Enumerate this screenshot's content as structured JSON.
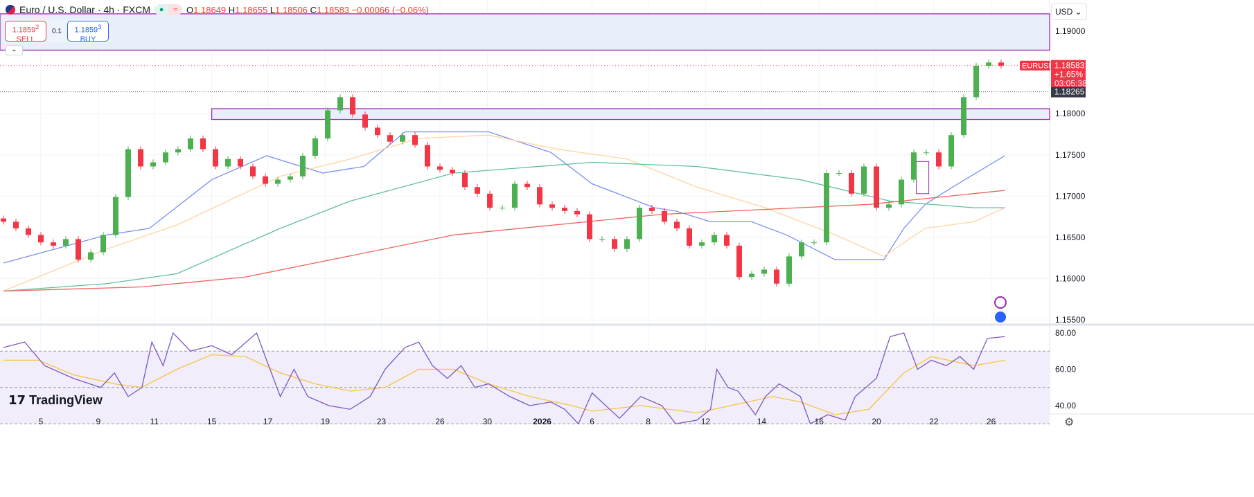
{
  "header": {
    "symbol": "Euro / U.S. Dollar · 4h · FXCM",
    "open_label": "O",
    "open": "1.18649",
    "high_label": "H",
    "high": "1.18655",
    "low_label": "L",
    "low": "1.18506",
    "close_label": "C",
    "close": "1.18583",
    "change": "−0.00066 (−0.06%)",
    "status_icon": "≈"
  },
  "trade": {
    "sell_price": "1.1859",
    "sell_sup": "2",
    "sell_label": "SELL",
    "qty": "0.1",
    "buy_price": "1.1859",
    "buy_sup": "3",
    "buy_label": "BUY"
  },
  "currency": "USD",
  "logo": "TradingView",
  "colors": {
    "up": "#4caf50",
    "down": "#f23645",
    "ma_fast": "#7b8ff0",
    "ma_mid": "#ffd3a0",
    "ma_slow": "#5fbf9a",
    "ma_long": "#f0625a",
    "rsi": "#7e57c2",
    "rsi_ma": "#f5c542",
    "zone": "#9c27b0"
  },
  "chart_data": [
    {
      "type": "candlestick",
      "title": "Euro / U.S. Dollar · 4h · FXCM",
      "ylim": [
        1.1535,
        1.1925
      ],
      "y_ticks": [
        "1.19000",
        "1.18000",
        "1.17500",
        "1.17000",
        "1.16500",
        "1.16000",
        "1.15500"
      ],
      "x_ticks": [
        {
          "label": "5",
          "bar": 3
        },
        {
          "label": "9",
          "bar": 7.6
        },
        {
          "label": "11",
          "bar": 12.1
        },
        {
          "label": "15",
          "bar": 16.7
        },
        {
          "label": "17",
          "bar": 21.2
        },
        {
          "label": "19",
          "bar": 25.8
        },
        {
          "label": "23",
          "bar": 30.3
        },
        {
          "label": "26",
          "bar": 35
        },
        {
          "label": "30",
          "bar": 38.8
        },
        {
          "label": "2026",
          "bar": 43.2
        },
        {
          "label": "6",
          "bar": 47.2
        },
        {
          "label": "8",
          "bar": 51.7
        },
        {
          "label": "12",
          "bar": 56.3
        },
        {
          "label": "14",
          "bar": 60.8
        },
        {
          "label": "16",
          "bar": 65.4
        },
        {
          "label": "20",
          "bar": 70
        },
        {
          "label": "22",
          "bar": 74.6
        },
        {
          "label": "26",
          "bar": 79.2
        }
      ],
      "closes": [
        1.1669,
        1.1661,
        1.1653,
        1.1644,
        1.164,
        1.1648,
        1.1623,
        1.1632,
        1.1653,
        1.1699,
        1.1757,
        1.1736,
        1.1741,
        1.1753,
        1.1757,
        1.177,
        1.1757,
        1.1736,
        1.1745,
        1.1736,
        1.1724,
        1.1715,
        1.172,
        1.1724,
        1.1749,
        1.177,
        1.1804,
        1.182,
        1.1799,
        1.1783,
        1.1774,
        1.1766,
        1.1774,
        1.1762,
        1.1736,
        1.1732,
        1.1728,
        1.1711,
        1.1703,
        1.1686,
        1.1686,
        1.1715,
        1.1711,
        1.169,
        1.1686,
        1.1682,
        1.1678,
        1.1648,
        1.1648,
        1.1636,
        1.1648,
        1.1686,
        1.1682,
        1.1669,
        1.1661,
        1.164,
        1.1644,
        1.1653,
        1.164,
        1.1602,
        1.1606,
        1.1611,
        1.1594,
        1.1627,
        1.1644,
        1.1644,
        1.1728,
        1.1728,
        1.1703,
        1.1736,
        1.1686,
        1.169,
        1.172,
        1.1753,
        1.1753,
        1.1736,
        1.1774,
        1.182,
        1.1858,
        1.1862,
        1.1858
      ],
      "moving_averages": [
        {
          "color_key": "ma_fast",
          "points": [
            [
              0,
              1.1619
            ],
            [
              8.3,
              1.1653
            ],
            [
              11.7,
              1.1661
            ],
            [
              16.7,
              1.172
            ],
            [
              21.1,
              1.1749
            ],
            [
              25.6,
              1.1728
            ],
            [
              28.9,
              1.1736
            ],
            [
              32.2,
              1.1778
            ],
            [
              38.9,
              1.1778
            ],
            [
              43.9,
              1.1753
            ],
            [
              47.2,
              1.1715
            ],
            [
              52.2,
              1.1686
            ],
            [
              53.9,
              1.1682
            ],
            [
              56.7,
              1.1669
            ],
            [
              60,
              1.1669
            ],
            [
              62.8,
              1.1653
            ],
            [
              66.7,
              1.1623
            ],
            [
              70.6,
              1.1623
            ],
            [
              72.2,
              1.1661
            ],
            [
              73.9,
              1.169
            ],
            [
              76.1,
              1.1711
            ],
            [
              80.3,
              1.1749
            ]
          ]
        },
        {
          "color_key": "ma_mid",
          "points": [
            [
              0,
              1.1585
            ],
            [
              8.3,
              1.1636
            ],
            [
              13.9,
              1.1665
            ],
            [
              22.2,
              1.1724
            ],
            [
              27.8,
              1.1745
            ],
            [
              33.3,
              1.177
            ],
            [
              38.9,
              1.1774
            ],
            [
              44.4,
              1.1757
            ],
            [
              50,
              1.1745
            ],
            [
              55.6,
              1.1711
            ],
            [
              61.1,
              1.1686
            ],
            [
              66.7,
              1.1653
            ],
            [
              70.6,
              1.1627
            ],
            [
              73.9,
              1.1661
            ],
            [
              77.8,
              1.1669
            ],
            [
              80.3,
              1.1686
            ]
          ]
        },
        {
          "color_key": "ma_slow",
          "points": [
            [
              0,
              1.1585
            ],
            [
              8.3,
              1.1594
            ],
            [
              13.9,
              1.1606
            ],
            [
              22.2,
              1.1661
            ],
            [
              27.8,
              1.1694
            ],
            [
              36.1,
              1.1728
            ],
            [
              47.2,
              1.1741
            ],
            [
              55.6,
              1.1736
            ],
            [
              63.9,
              1.172
            ],
            [
              71.1,
              1.1694
            ],
            [
              77.8,
              1.1686
            ],
            [
              80.3,
              1.1686
            ]
          ]
        },
        {
          "color_key": "ma_long",
          "points": [
            [
              0,
              1.1585
            ],
            [
              11.1,
              1.159
            ],
            [
              19.4,
              1.1602
            ],
            [
              36.1,
              1.1653
            ],
            [
              52.8,
              1.1678
            ],
            [
              69.4,
              1.169
            ],
            [
              80.3,
              1.1707
            ]
          ]
        }
      ],
      "zones": [
        {
          "from_bar": -1,
          "top": 1.1921,
          "bottom": 1.1877
        },
        {
          "from_bar": 16.7,
          "top": 1.1806,
          "bottom": 1.1793
        }
      ],
      "box": {
        "from_bar": 73.2,
        "to_bar": 74.2,
        "top": 1.1742,
        "bottom": 1.1703
      },
      "last_price": {
        "symbol": "EURUSD",
        "price": "1.18583",
        "value": 1.18583,
        "change": "+1.65%",
        "countdown": "03:05:38"
      },
      "level": {
        "label": "1.18265",
        "value": 1.18265
      }
    },
    {
      "type": "line",
      "ylim": [
        24,
        88
      ],
      "y_ticks": [
        "80.00",
        "60.00",
        "40.00"
      ],
      "band": [
        30,
        70
      ],
      "mid": 50,
      "rsi": [
        [
          0,
          72
        ],
        [
          1.7,
          75
        ],
        [
          3.3,
          62
        ],
        [
          5.6,
          55
        ],
        [
          7.8,
          50
        ],
        [
          8.9,
          58
        ],
        [
          10,
          45
        ],
        [
          11.1,
          50
        ],
        [
          11.9,
          75
        ],
        [
          12.8,
          62
        ],
        [
          13.6,
          80
        ],
        [
          15,
          70
        ],
        [
          16.7,
          73
        ],
        [
          18.3,
          68
        ],
        [
          20.3,
          80
        ],
        [
          21.1,
          65
        ],
        [
          22.2,
          45
        ],
        [
          23.3,
          60
        ],
        [
          24.4,
          45
        ],
        [
          26.1,
          40
        ],
        [
          27.8,
          38
        ],
        [
          29.4,
          45
        ],
        [
          30.6,
          60
        ],
        [
          32.2,
          72
        ],
        [
          33.3,
          75
        ],
        [
          34.4,
          62
        ],
        [
          35.6,
          55
        ],
        [
          36.7,
          62
        ],
        [
          37.8,
          50
        ],
        [
          38.9,
          52
        ],
        [
          40.6,
          45
        ],
        [
          42.2,
          40
        ],
        [
          43.9,
          42
        ],
        [
          45,
          38
        ],
        [
          46.1,
          30
        ],
        [
          47.2,
          47
        ],
        [
          48.3,
          40
        ],
        [
          49.4,
          33
        ],
        [
          51.1,
          45
        ],
        [
          52.8,
          40
        ],
        [
          53.9,
          30
        ],
        [
          55.6,
          32
        ],
        [
          56.7,
          38
        ],
        [
          57.2,
          60
        ],
        [
          58.1,
          50
        ],
        [
          58.9,
          48
        ],
        [
          60.3,
          35
        ],
        [
          61.1,
          45
        ],
        [
          62.2,
          52
        ],
        [
          63.9,
          45
        ],
        [
          64.7,
          30
        ],
        [
          66.1,
          35
        ],
        [
          67.5,
          32
        ],
        [
          68.3,
          45
        ],
        [
          70,
          55
        ],
        [
          71.1,
          78
        ],
        [
          72.2,
          80
        ],
        [
          73.3,
          60
        ],
        [
          74.4,
          65
        ],
        [
          75.6,
          62
        ],
        [
          76.7,
          67
        ],
        [
          77.8,
          60
        ],
        [
          78.9,
          77
        ],
        [
          80.3,
          78
        ]
      ],
      "rsi_ma": [
        [
          0,
          65
        ],
        [
          2.8,
          65
        ],
        [
          5.6,
          57
        ],
        [
          8.9,
          52
        ],
        [
          11.1,
          50
        ],
        [
          13.9,
          60
        ],
        [
          16.7,
          68
        ],
        [
          19.4,
          67
        ],
        [
          22.2,
          58
        ],
        [
          25,
          52
        ],
        [
          27.8,
          48
        ],
        [
          30.6,
          50
        ],
        [
          33.3,
          60
        ],
        [
          36.1,
          60
        ],
        [
          38.9,
          52
        ],
        [
          42.2,
          45
        ],
        [
          45.6,
          40
        ],
        [
          47.2,
          37
        ],
        [
          51.1,
          40
        ],
        [
          55.6,
          36
        ],
        [
          58.3,
          40
        ],
        [
          61.7,
          45
        ],
        [
          63.9,
          42
        ],
        [
          66.7,
          35
        ],
        [
          69.4,
          38
        ],
        [
          72.2,
          58
        ],
        [
          74.4,
          67
        ],
        [
          77.8,
          62
        ],
        [
          80.3,
          65
        ]
      ]
    }
  ]
}
